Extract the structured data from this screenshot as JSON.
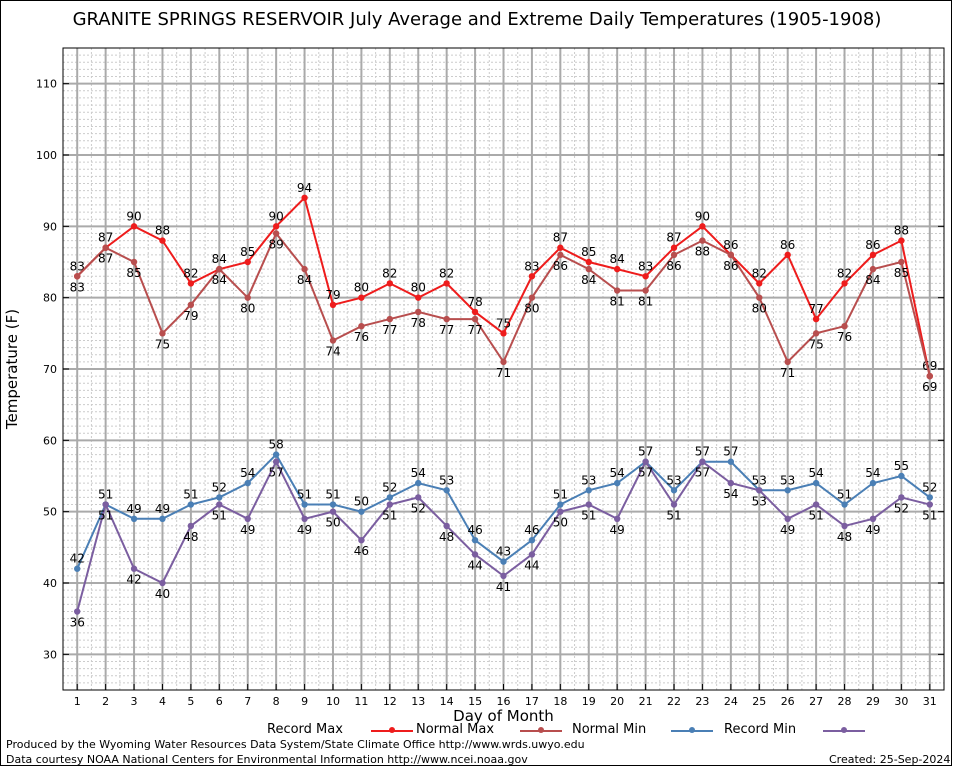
{
  "title": "GRANITE SPRINGS RESERVOIR July Average and Extreme Daily Temperatures (1905-1908)",
  "credits": {
    "line1": "Produced by the Wyoming Water Resources Data System/State Climate Office http://www.wrds.uwyo.edu",
    "line2": "Data courtesy NOAA National Centers for Environmental Information http://www.ncei.noaa.gov",
    "created": "Created:  25-Sep-2024"
  },
  "legend": {
    "record_max": "Record Max",
    "normal_max": "Normal Max",
    "normal_min": "Normal Min",
    "record_min": "Record Min"
  },
  "colors": {
    "record_max": "#ee1c1c",
    "normal_max": "#b84e4e",
    "normal_min": "#4a7fb5",
    "record_min": "#7b5ea0",
    "major_grid": "#aaaaaa",
    "minor_grid": "#cccccc"
  },
  "chart_data": {
    "type": "line",
    "xlabel": "Day of Month",
    "ylabel": "Temperature (F)",
    "x": [
      1,
      2,
      3,
      4,
      5,
      6,
      7,
      8,
      9,
      10,
      11,
      12,
      13,
      14,
      15,
      16,
      17,
      18,
      19,
      20,
      21,
      22,
      23,
      24,
      25,
      26,
      27,
      28,
      29,
      30,
      31
    ],
    "xlim": [
      0.5,
      31.5
    ],
    "ylim": [
      25,
      115
    ],
    "yticks": [
      30,
      40,
      50,
      60,
      70,
      80,
      90,
      100,
      110
    ],
    "grid": true,
    "legend_position": "bottom",
    "series": [
      {
        "name": "Record Max",
        "key": "record_max",
        "values": [
          83,
          87,
          90,
          88,
          82,
          84,
          85,
          90,
          94,
          79,
          80,
          82,
          80,
          82,
          78,
          75,
          83,
          87,
          85,
          84,
          83,
          87,
          90,
          86,
          82,
          86,
          77,
          82,
          86,
          88,
          69
        ]
      },
      {
        "name": "Normal Max",
        "key": "normal_max",
        "values": [
          83,
          87,
          85,
          75,
          79,
          84,
          80,
          89,
          84,
          74,
          76,
          77,
          78,
          77,
          77,
          71,
          80,
          86,
          84,
          81,
          81,
          86,
          88,
          86,
          80,
          71,
          75,
          76,
          84,
          85,
          69
        ]
      },
      {
        "name": "Normal Min",
        "key": "normal_min",
        "values": [
          42,
          51,
          49,
          49,
          51,
          52,
          54,
          58,
          51,
          51,
          50,
          52,
          54,
          53,
          46,
          43,
          46,
          51,
          53,
          54,
          57,
          53,
          57,
          57,
          53,
          53,
          54,
          51,
          54,
          55,
          52
        ]
      },
      {
        "name": "Record Min",
        "key": "record_min",
        "values": [
          36,
          51,
          42,
          40,
          48,
          51,
          49,
          57,
          49,
          50,
          46,
          51,
          52,
          48,
          44,
          41,
          44,
          50,
          51,
          49,
          57,
          51,
          57,
          54,
          53,
          49,
          51,
          48,
          49,
          52,
          51
        ]
      }
    ]
  }
}
